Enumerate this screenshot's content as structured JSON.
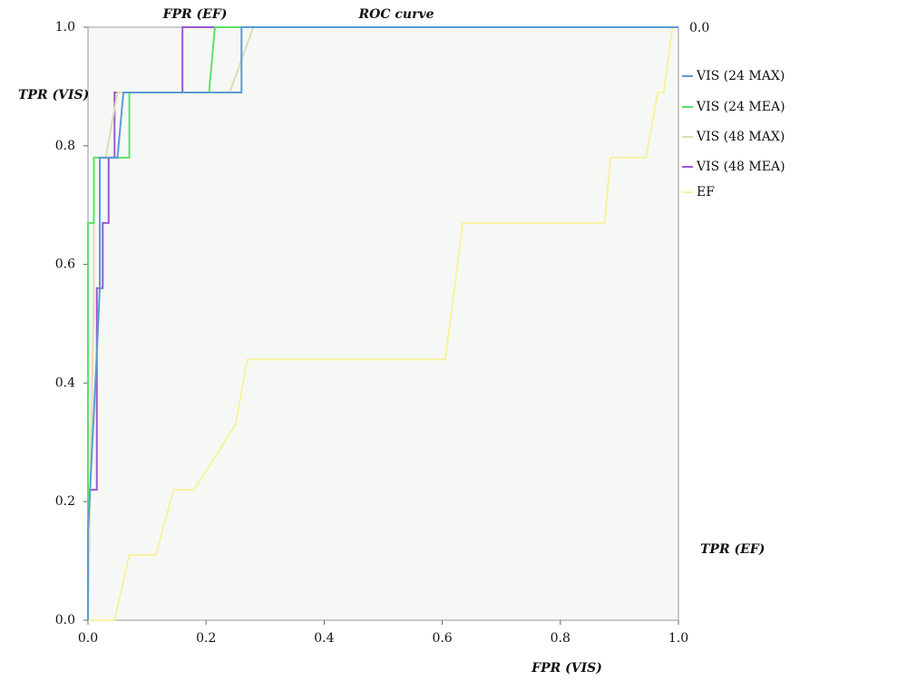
{
  "chart_data": {
    "type": "line",
    "title": "ROC curve",
    "x_label": "FPR (VIS)",
    "y_label": "TPR (VIS)",
    "x2_label": "FPR (EF)",
    "y2_label": "TPR (EF)",
    "right_axis_text": "0.0",
    "xlim": [
      0,
      1
    ],
    "ylim": [
      0,
      1
    ],
    "xticks": [
      {
        "value": 0,
        "label": "0.0"
      },
      {
        "value": 0.2,
        "label": "0.2"
      },
      {
        "value": 0.4,
        "label": "0.4"
      },
      {
        "value": 0.6,
        "label": "0.6"
      },
      {
        "value": 0.8,
        "label": "0.8"
      },
      {
        "value": 1,
        "label": "1.0"
      }
    ],
    "yticks": [
      {
        "value": 0,
        "label": "0.0"
      },
      {
        "value": 0.2,
        "label": "0.2"
      },
      {
        "value": 0.4,
        "label": "0.4"
      },
      {
        "value": 0.6,
        "label": "0.6"
      },
      {
        "value": 0.8,
        "label": "0.8"
      },
      {
        "value": 1,
        "label": "1.0"
      }
    ],
    "series": [
      {
        "name": "VIS (24 MAX)",
        "color": "#5b9bd5",
        "x": [
          0,
          0,
          0.015,
          0.02,
          0.02,
          0.05,
          0.06,
          0.26,
          0.26,
          1
        ],
        "y": [
          0,
          0.15,
          0.45,
          0.56,
          0.78,
          0.78,
          0.89,
          0.89,
          1,
          1
        ]
      },
      {
        "name": "VIS (24 MEA)",
        "color": "#5ee06a",
        "x": [
          0,
          0,
          0.01,
          0.01,
          0.07,
          0.07,
          0.205,
          0.215,
          1
        ],
        "y": [
          0,
          0.67,
          0.67,
          0.78,
          0.78,
          0.89,
          0.89,
          1,
          1
        ]
      },
      {
        "name": "VIS (48 MAX)",
        "color": "#e0dcb4",
        "x": [
          0,
          0.01,
          0.01,
          0.03,
          0.05,
          0.24,
          0.28,
          1
        ],
        "y": [
          0,
          0.56,
          0.78,
          0.78,
          0.89,
          0.89,
          1,
          1
        ]
      },
      {
        "name": "VIS (48 MEA)",
        "color": "#9b59d0",
        "x": [
          0,
          0,
          0.015,
          0.015,
          0.025,
          0.025,
          0.035,
          0.035,
          0.045,
          0.045,
          0.16,
          0.16,
          1
        ],
        "y": [
          0,
          0.22,
          0.22,
          0.56,
          0.56,
          0.67,
          0.67,
          0.78,
          0.78,
          0.89,
          0.89,
          1,
          1
        ]
      },
      {
        "name": "EF",
        "color": "#f7f2a0",
        "x": [
          0,
          0.045,
          0.07,
          0.115,
          0.145,
          0.18,
          0.25,
          0.27,
          0.605,
          0.635,
          0.875,
          0.885,
          0.945,
          0.965,
          0.975,
          0.99
        ],
        "y": [
          0,
          0,
          0.11,
          0.11,
          0.22,
          0.22,
          0.33,
          0.44,
          0.44,
          0.67,
          0.67,
          0.78,
          0.78,
          0.89,
          0.89,
          1
        ]
      }
    ]
  }
}
